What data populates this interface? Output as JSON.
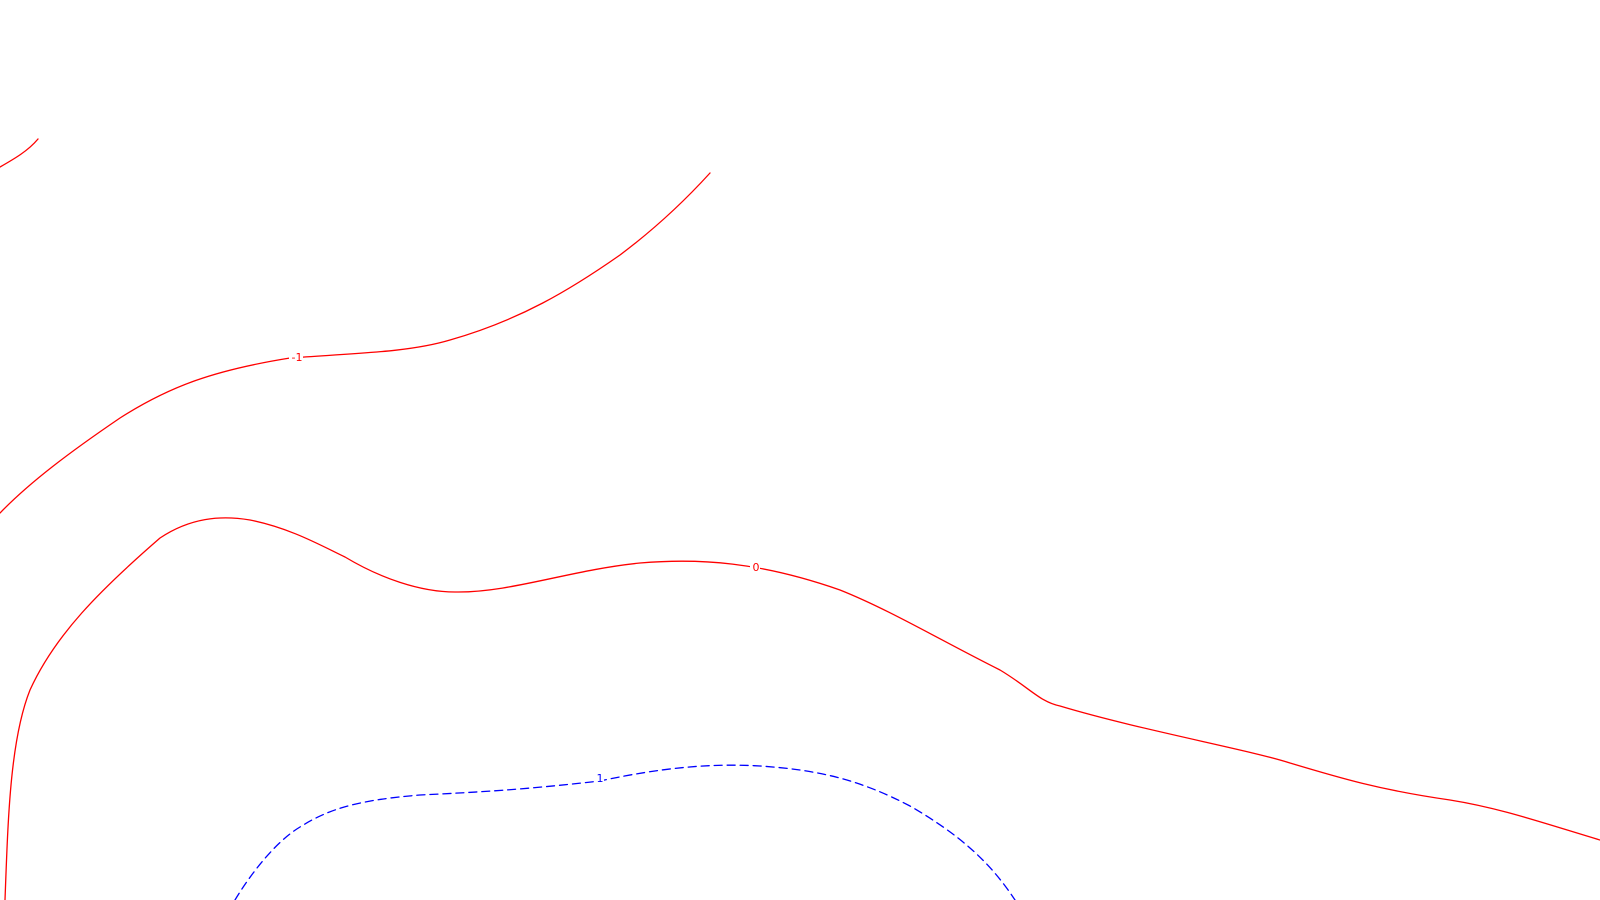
{
  "map": {
    "background": "#ffffff",
    "contours": [
      {
        "id": "minus1-fragment",
        "level": "-1",
        "style": "solid",
        "color": "#ff0000",
        "label": ""
      },
      {
        "id": "minus1",
        "level": "-1",
        "style": "solid",
        "color": "#ff0000",
        "label": "-1"
      },
      {
        "id": "zero",
        "level": "0",
        "style": "solid",
        "color": "#ff0000",
        "label": "0"
      },
      {
        "id": "plus1",
        "level": "1",
        "style": "dashed",
        "color": "#0000ff",
        "label": "1"
      }
    ]
  }
}
